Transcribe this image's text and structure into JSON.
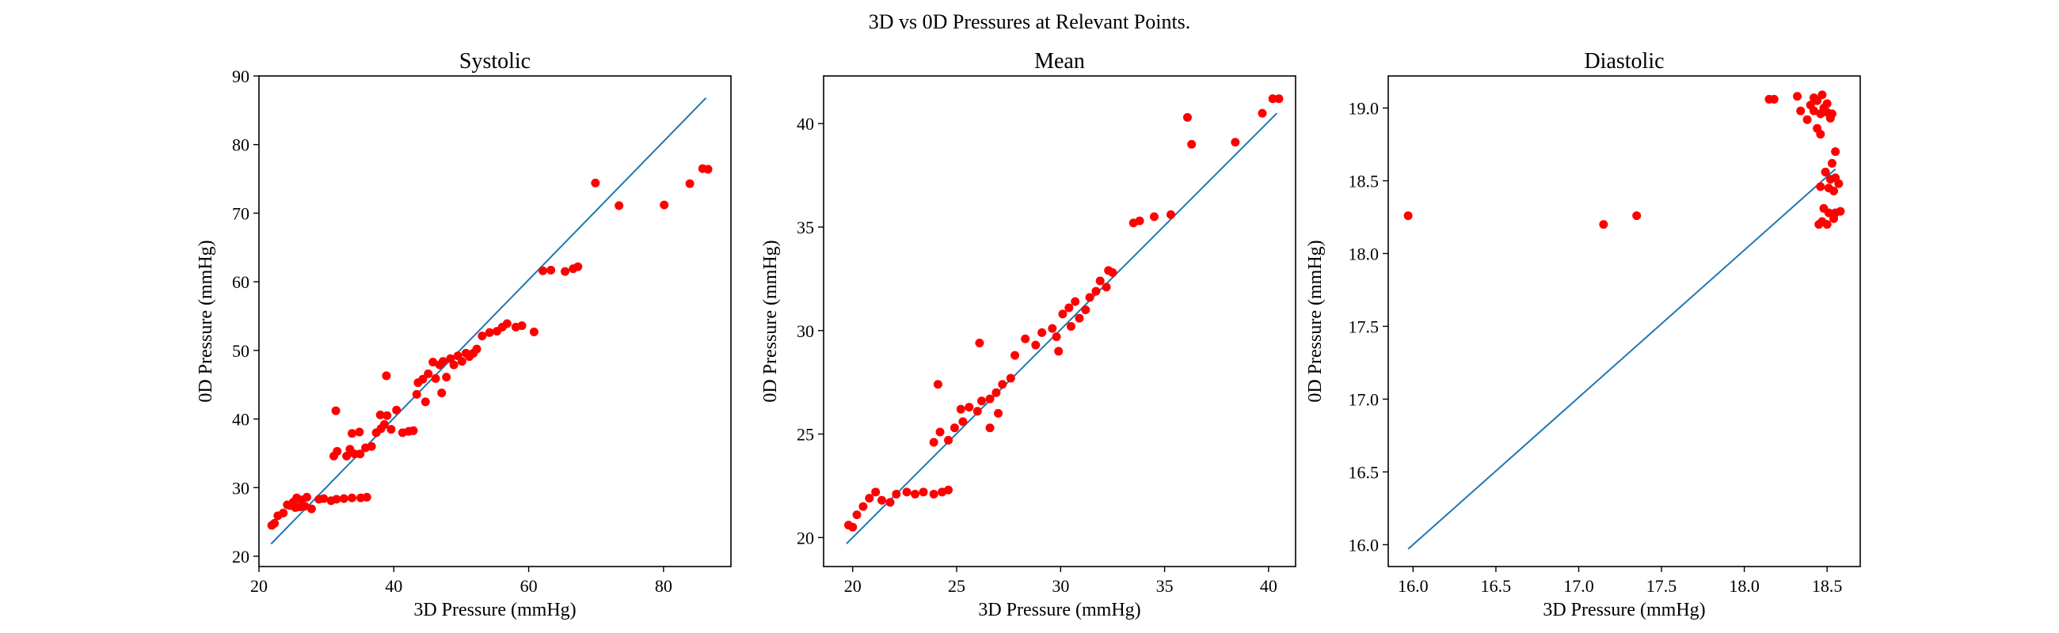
{
  "figure": {
    "title": "3D vs 0D Pressures at Relevant Points."
  },
  "colors": {
    "points": "#ff0000",
    "line": "#1f77b4",
    "axes": "#000000",
    "background": "#ffffff"
  },
  "chart_data": [
    {
      "type": "scatter",
      "title": "Systolic",
      "xlabel": "3D Pressure (mmHg)",
      "ylabel": "0D Pressure (mmHg)",
      "xlim": [
        20,
        90
      ],
      "ylim": [
        18.5,
        90
      ],
      "xticks": [
        20,
        40,
        60,
        80
      ],
      "yticks": [
        20,
        30,
        40,
        50,
        60,
        70,
        80,
        90
      ],
      "xtick_labels": [
        "20",
        "40",
        "60",
        "80"
      ],
      "ytick_labels": [
        "20",
        "30",
        "40",
        "50",
        "60",
        "70",
        "80",
        "90"
      ],
      "line": {
        "x": [
          21.8,
          86.3
        ],
        "y": [
          21.8,
          86.8
        ]
      },
      "points": [
        [
          21.9,
          24.5
        ],
        [
          22.3,
          24.8
        ],
        [
          22.8,
          25.9
        ],
        [
          23.6,
          26.3
        ],
        [
          24.2,
          27.5
        ],
        [
          24.6,
          27.4
        ],
        [
          25.1,
          27.9
        ],
        [
          25.6,
          28.5
        ],
        [
          26.3,
          28.2
        ],
        [
          27.1,
          28.6
        ],
        [
          25.4,
          27.1
        ],
        [
          26.1,
          27.2
        ],
        [
          26.8,
          27.3
        ],
        [
          27.8,
          26.9
        ],
        [
          28.9,
          28.3
        ],
        [
          29.6,
          28.4
        ],
        [
          30.7,
          28.1
        ],
        [
          31.5,
          28.3
        ],
        [
          32.6,
          28.4
        ],
        [
          33.8,
          28.5
        ],
        [
          35.1,
          28.5
        ],
        [
          36.0,
          28.6
        ],
        [
          31.1,
          34.6
        ],
        [
          31.6,
          35.3
        ],
        [
          31.4,
          41.2
        ],
        [
          33.0,
          34.6
        ],
        [
          33.5,
          35.6
        ],
        [
          34.2,
          34.9
        ],
        [
          35.0,
          34.9
        ],
        [
          33.8,
          37.9
        ],
        [
          34.9,
          38.1
        ],
        [
          35.8,
          35.8
        ],
        [
          36.7,
          36.0
        ],
        [
          37.4,
          38.0
        ],
        [
          38.1,
          38.6
        ],
        [
          38.6,
          39.2
        ],
        [
          38.0,
          40.6
        ],
        [
          39.0,
          40.5
        ],
        [
          39.6,
          38.5
        ],
        [
          40.4,
          41.3
        ],
        [
          38.9,
          46.3
        ],
        [
          41.3,
          38.0
        ],
        [
          42.2,
          38.2
        ],
        [
          42.9,
          38.3
        ],
        [
          43.4,
          43.6
        ],
        [
          43.6,
          45.3
        ],
        [
          44.3,
          45.8
        ],
        [
          45.1,
          46.6
        ],
        [
          44.7,
          42.5
        ],
        [
          45.8,
          48.3
        ],
        [
          46.2,
          45.9
        ],
        [
          46.8,
          47.9
        ],
        [
          47.3,
          48.4
        ],
        [
          47.1,
          43.8
        ],
        [
          47.8,
          46.1
        ],
        [
          48.4,
          48.8
        ],
        [
          48.9,
          47.9
        ],
        [
          49.5,
          49.2
        ],
        [
          50.1,
          48.4
        ],
        [
          50.7,
          49.6
        ],
        [
          51.2,
          49.1
        ],
        [
          51.8,
          49.6
        ],
        [
          52.3,
          50.2
        ],
        [
          53.1,
          52.1
        ],
        [
          54.2,
          52.6
        ],
        [
          55.3,
          52.8
        ],
        [
          56.1,
          53.4
        ],
        [
          56.8,
          53.9
        ],
        [
          58.1,
          53.4
        ],
        [
          59.0,
          53.6
        ],
        [
          60.8,
          52.7
        ],
        [
          62.1,
          61.6
        ],
        [
          63.3,
          61.7
        ],
        [
          65.4,
          61.5
        ],
        [
          66.6,
          61.9
        ],
        [
          67.3,
          62.2
        ],
        [
          69.9,
          74.4
        ],
        [
          73.4,
          71.1
        ],
        [
          80.1,
          71.2
        ],
        [
          83.9,
          74.3
        ],
        [
          85.8,
          76.5
        ],
        [
          86.6,
          76.4
        ]
      ]
    },
    {
      "type": "scatter",
      "title": "Mean",
      "xlabel": "3D Pressure (mmHg)",
      "ylabel": "0D Pressure (mmHg)",
      "xlim": [
        18.6,
        41.3
      ],
      "ylim": [
        18.6,
        42.3
      ],
      "xticks": [
        20,
        25,
        30,
        35,
        40
      ],
      "yticks": [
        20,
        25,
        30,
        35,
        40
      ],
      "xtick_labels": [
        "20",
        "25",
        "30",
        "35",
        "40"
      ],
      "ytick_labels": [
        "20",
        "25",
        "30",
        "35",
        "40"
      ],
      "line": {
        "x": [
          19.7,
          40.4
        ],
        "y": [
          19.7,
          40.5
        ]
      },
      "points": [
        [
          19.8,
          20.6
        ],
        [
          20.0,
          20.5
        ],
        [
          20.2,
          21.1
        ],
        [
          20.5,
          21.5
        ],
        [
          20.8,
          21.9
        ],
        [
          21.1,
          22.2
        ],
        [
          21.4,
          21.8
        ],
        [
          21.8,
          21.7
        ],
        [
          22.1,
          22.1
        ],
        [
          22.6,
          22.2
        ],
        [
          23.0,
          22.1
        ],
        [
          23.4,
          22.2
        ],
        [
          23.9,
          22.1
        ],
        [
          24.3,
          22.2
        ],
        [
          24.6,
          22.3
        ],
        [
          23.9,
          24.6
        ],
        [
          24.2,
          25.1
        ],
        [
          24.6,
          24.7
        ],
        [
          24.9,
          25.3
        ],
        [
          25.3,
          25.6
        ],
        [
          25.2,
          26.2
        ],
        [
          25.6,
          26.3
        ],
        [
          26.0,
          26.1
        ],
        [
          26.2,
          26.6
        ],
        [
          26.6,
          26.7
        ],
        [
          26.9,
          27.0
        ],
        [
          27.2,
          27.4
        ],
        [
          27.6,
          27.7
        ],
        [
          27.0,
          26.0
        ],
        [
          26.6,
          25.3
        ],
        [
          24.1,
          27.4
        ],
        [
          26.1,
          29.4
        ],
        [
          27.8,
          28.8
        ],
        [
          28.3,
          29.6
        ],
        [
          28.8,
          29.3
        ],
        [
          29.1,
          29.9
        ],
        [
          29.6,
          30.1
        ],
        [
          29.9,
          29.0
        ],
        [
          30.1,
          30.8
        ],
        [
          30.4,
          31.1
        ],
        [
          30.7,
          31.4
        ],
        [
          30.9,
          30.6
        ],
        [
          31.2,
          31.0
        ],
        [
          31.4,
          31.6
        ],
        [
          31.7,
          31.9
        ],
        [
          31.9,
          32.4
        ],
        [
          32.2,
          32.1
        ],
        [
          32.5,
          32.8
        ],
        [
          32.3,
          32.9
        ],
        [
          29.8,
          29.7
        ],
        [
          30.5,
          30.2
        ],
        [
          33.5,
          35.2
        ],
        [
          33.8,
          35.3
        ],
        [
          34.5,
          35.5
        ],
        [
          35.3,
          35.6
        ],
        [
          36.1,
          40.3
        ],
        [
          36.3,
          39.0
        ],
        [
          38.4,
          39.1
        ],
        [
          39.7,
          40.5
        ],
        [
          40.2,
          41.2
        ],
        [
          40.5,
          41.2
        ]
      ]
    },
    {
      "type": "scatter",
      "title": "Diastolic",
      "xlabel": "3D Pressure (mmHg)",
      "ylabel": "0D Pressure (mmHg)",
      "xlim": [
        15.85,
        18.7
      ],
      "ylim": [
        15.85,
        19.22
      ],
      "xticks": [
        16.0,
        16.5,
        17.0,
        17.5,
        18.0,
        18.5
      ],
      "yticks": [
        16.0,
        16.5,
        17.0,
        17.5,
        18.0,
        18.5,
        19.0
      ],
      "xtick_labels": [
        "16.0",
        "16.5",
        "17.0",
        "17.5",
        "18.0",
        "18.5"
      ],
      "ytick_labels": [
        "16.0",
        "16.5",
        "17.0",
        "17.5",
        "18.0",
        "18.5",
        "19.0"
      ],
      "line": {
        "x": [
          15.97,
          18.55
        ],
        "y": [
          15.97,
          18.58
        ]
      },
      "points": [
        [
          15.97,
          18.26
        ],
        [
          17.15,
          18.2
        ],
        [
          17.35,
          18.26
        ],
        [
          18.15,
          19.06
        ],
        [
          18.18,
          19.06
        ],
        [
          18.32,
          19.08
        ],
        [
          18.34,
          18.98
        ],
        [
          18.38,
          18.92
        ],
        [
          18.4,
          19.02
        ],
        [
          18.42,
          19.07
        ],
        [
          18.44,
          19.05
        ],
        [
          18.46,
          18.96
        ],
        [
          18.48,
          19.0
        ],
        [
          18.5,
          18.97
        ],
        [
          18.52,
          18.93
        ],
        [
          18.44,
          18.86
        ],
        [
          18.46,
          18.82
        ],
        [
          18.5,
          19.03
        ],
        [
          18.53,
          18.96
        ],
        [
          18.42,
          18.98
        ],
        [
          18.47,
          19.09
        ],
        [
          18.55,
          18.7
        ],
        [
          18.53,
          18.62
        ],
        [
          18.49,
          18.56
        ],
        [
          18.52,
          18.51
        ],
        [
          18.46,
          18.46
        ],
        [
          18.51,
          18.45
        ],
        [
          18.55,
          18.52
        ],
        [
          18.57,
          18.48
        ],
        [
          18.54,
          18.43
        ],
        [
          18.48,
          18.31
        ],
        [
          18.51,
          18.28
        ],
        [
          18.55,
          18.28
        ],
        [
          18.58,
          18.29
        ],
        [
          18.47,
          18.22
        ],
        [
          18.5,
          18.2
        ],
        [
          18.54,
          18.24
        ],
        [
          18.45,
          18.2
        ]
      ]
    }
  ]
}
